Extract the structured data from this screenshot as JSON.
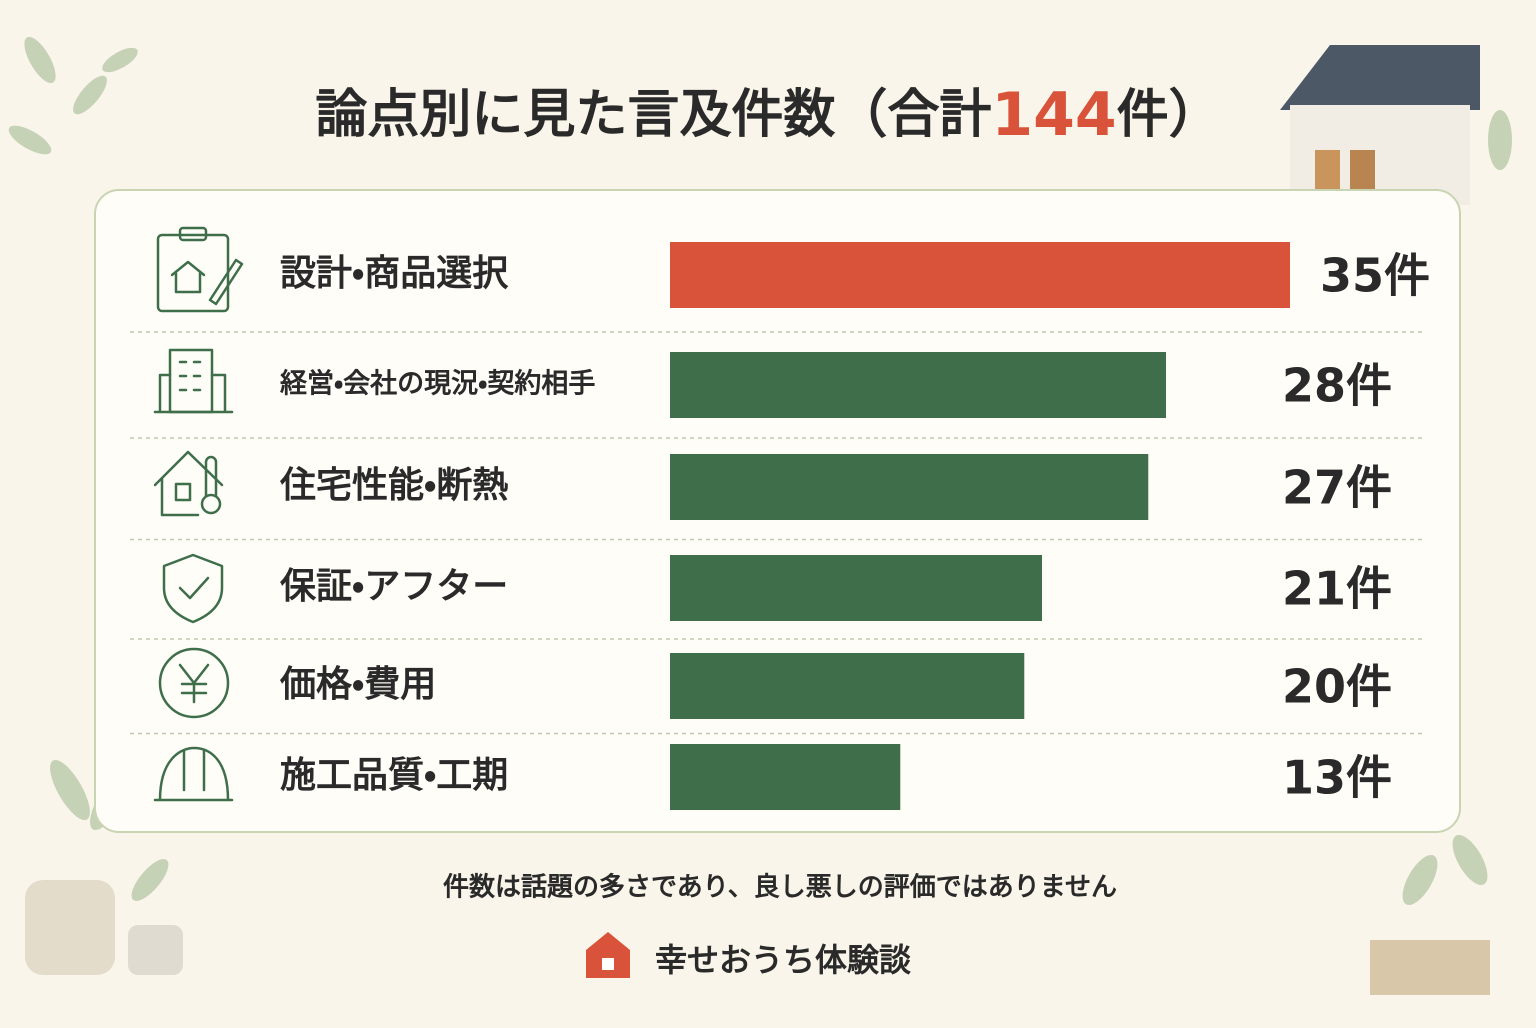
{
  "chart_data": {
    "type": "hbar",
    "title_parts": [
      "論点別に見た言及件数（合計",
      "144",
      "件）"
    ],
    "categories": [
      "設計・商品選択",
      "経営・会社の現況・契約相手",
      "住宅性能・断熱",
      "保証・アフター",
      "価格・費用",
      "施工品質・工期"
    ],
    "values": [
      35,
      28,
      27,
      21,
      20,
      13
    ],
    "value_labels": [
      "35件",
      "28件",
      "27件",
      "21件",
      "20件",
      "13件"
    ],
    "colors": [
      "#d9533a",
      "#3f6e4b",
      "#3f6e4b",
      "#3f6e4b",
      "#3f6e4b",
      "#3f6e4b"
    ],
    "note": "件数は話題の多さであり、良し悪しの評価ではありません",
    "brand": "幸せおうち体験談"
  }
}
